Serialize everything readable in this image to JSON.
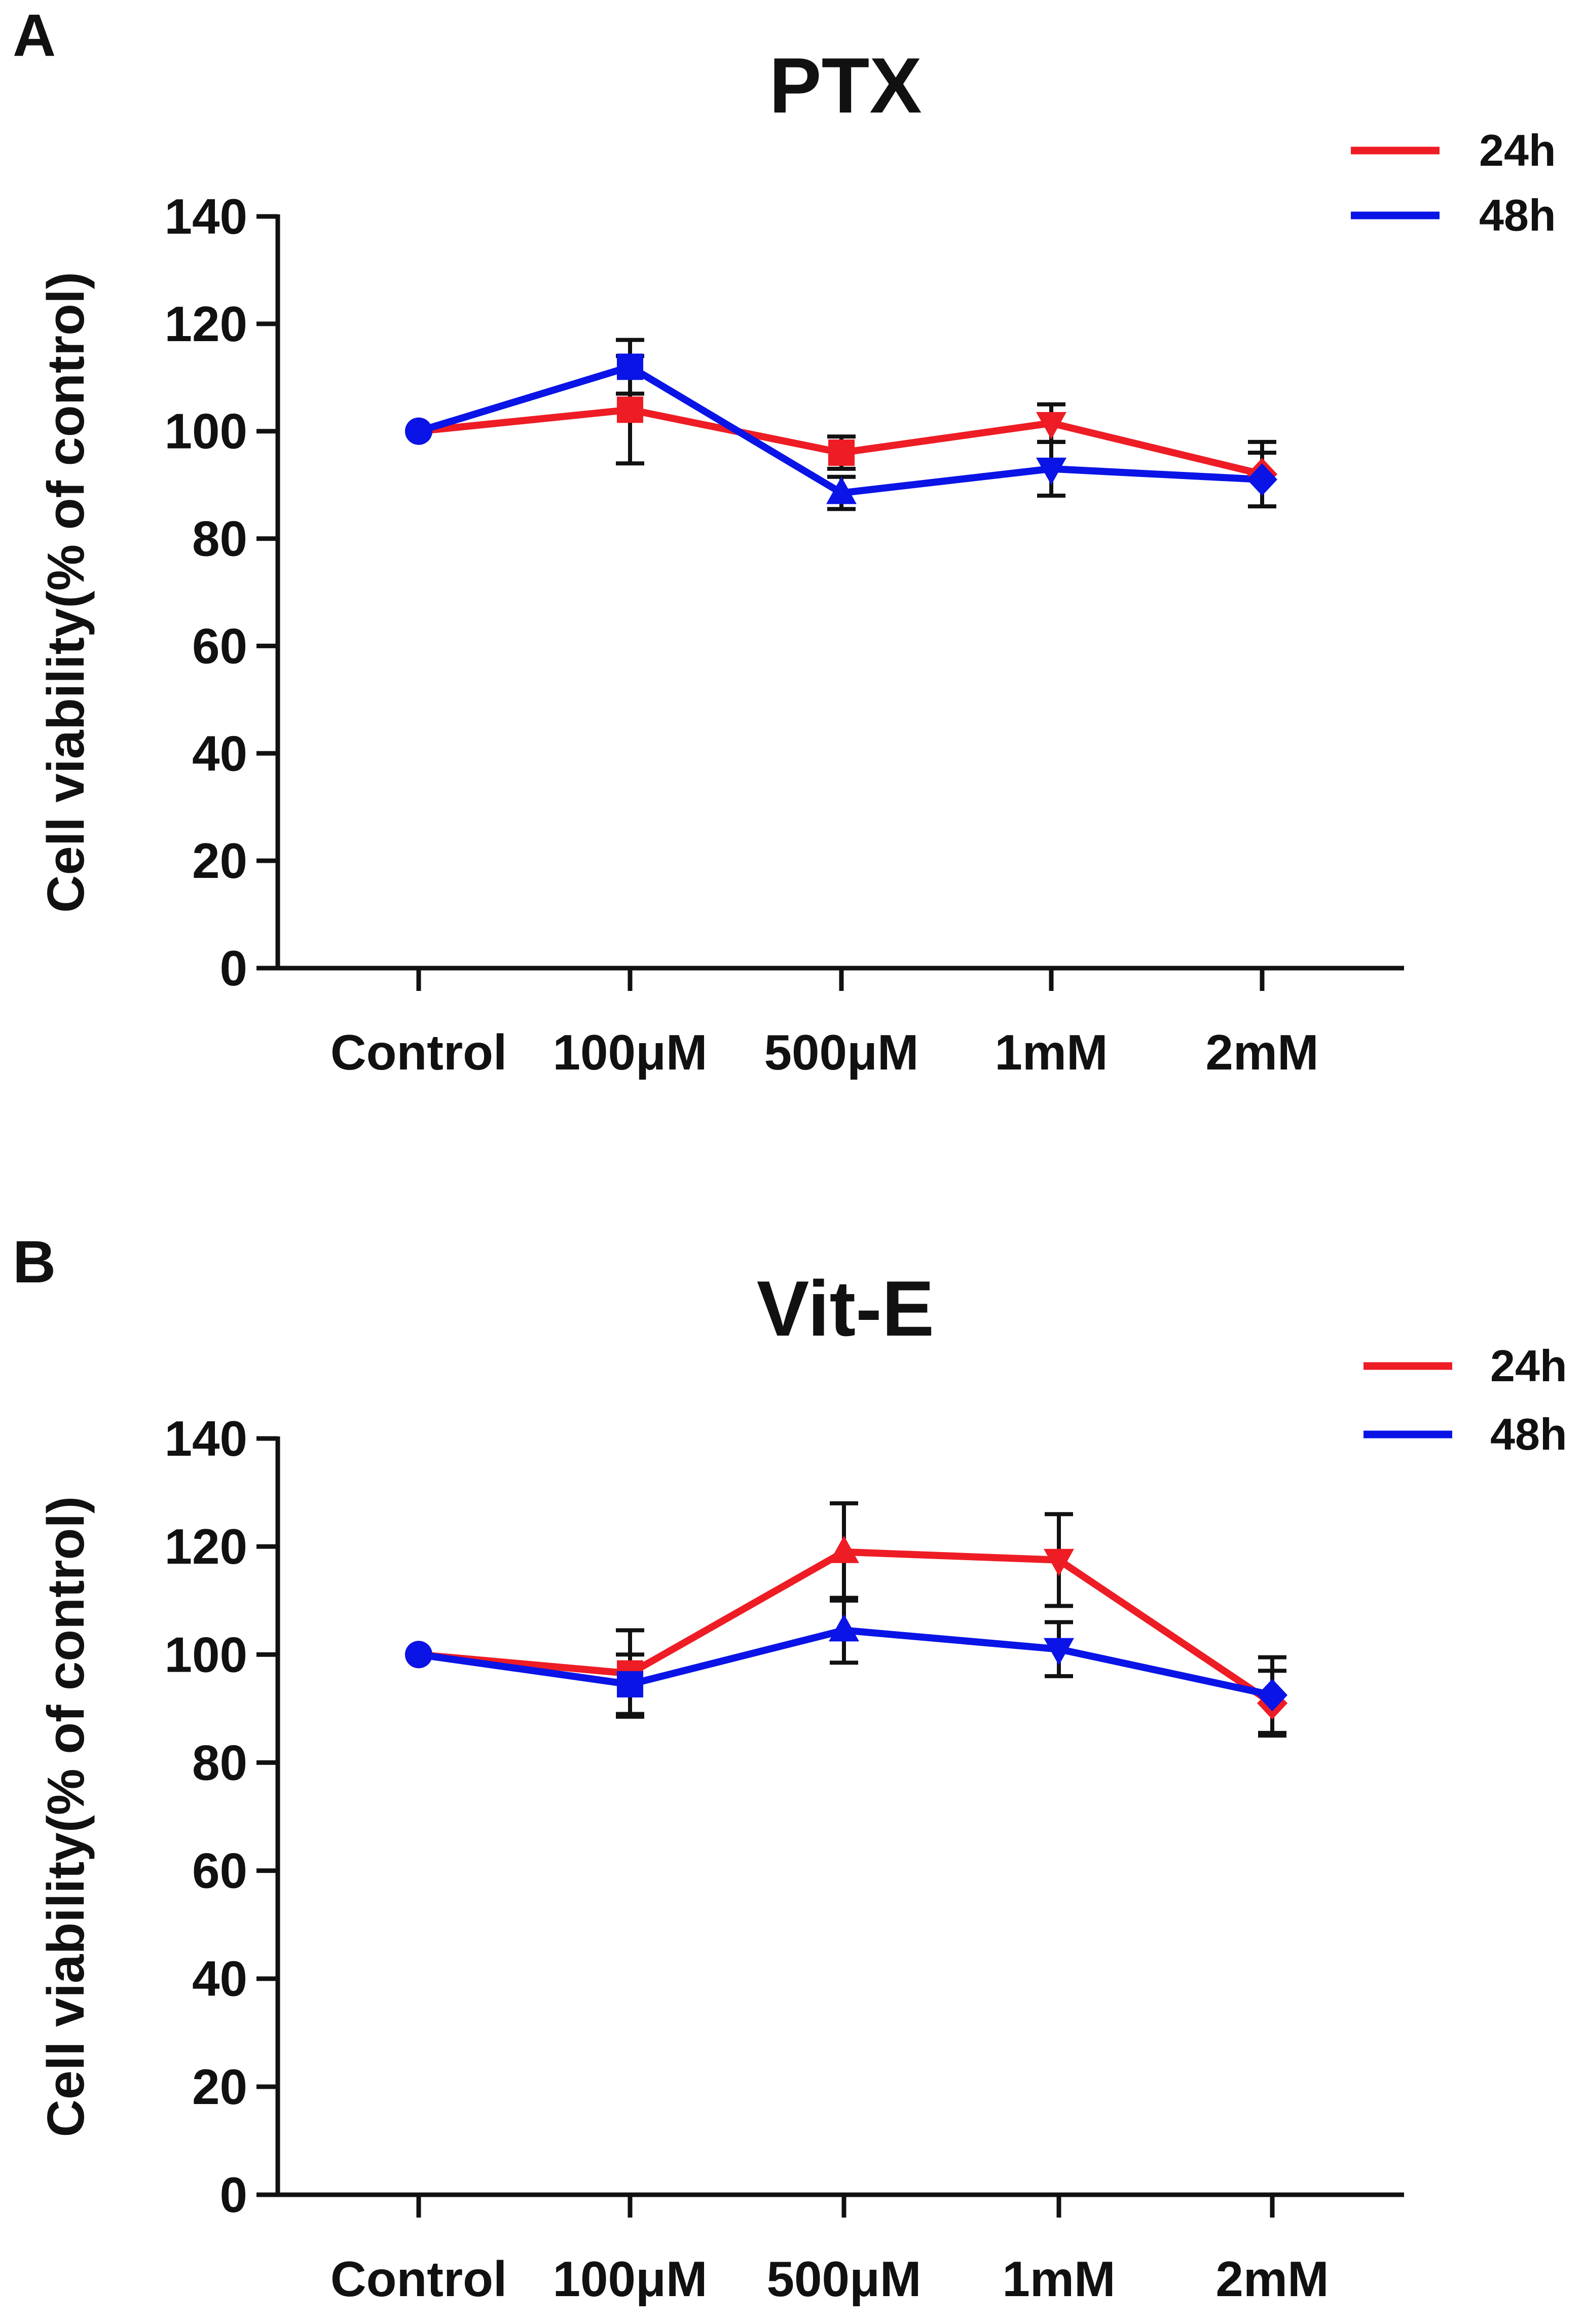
{
  "chart_data": [
    {
      "panel_label": "A",
      "type": "line",
      "title": "PTX",
      "xlabel": "",
      "ylabel": "Cell viability(% of control)",
      "categories": [
        "Control",
        "100μM",
        "500μM",
        "1mM",
        "2mM"
      ],
      "ylim": [
        0,
        140
      ],
      "yticks": [
        "0",
        "20",
        "40",
        "60",
        "80",
        "100",
        "120",
        "140"
      ],
      "legend_position": "top-right",
      "series": [
        {
          "name": "24h",
          "color": "#ee1c24",
          "markers": [
            "circle",
            "square",
            "square",
            "triangle-down",
            "diamond"
          ],
          "values": [
            100,
            104,
            96,
            101.5,
            92
          ],
          "errors": [
            0,
            10,
            3,
            3.5,
            6
          ]
        },
        {
          "name": "48h",
          "color": "#0a14e6",
          "markers": [
            "circle",
            "square",
            "triangle-up",
            "triangle-down",
            "diamond"
          ],
          "values": [
            100,
            112,
            88.5,
            93,
            91
          ],
          "errors": [
            0,
            5,
            3,
            5,
            5
          ]
        }
      ]
    },
    {
      "panel_label": "B",
      "type": "line",
      "title": "Vit-E",
      "xlabel": "",
      "ylabel": "Cell viability(% of control)",
      "categories": [
        "Control",
        "100μM",
        "500μM",
        "1mM",
        "2mM"
      ],
      "ylim": [
        0,
        140
      ],
      "yticks": [
        "0",
        "20",
        "40",
        "60",
        "80",
        "100",
        "120",
        "140"
      ],
      "legend_position": "top-right",
      "series": [
        {
          "name": "24h",
          "color": "#ee1c24",
          "markers": [
            "circle",
            "square",
            "triangle-up",
            "triangle-down",
            "diamond"
          ],
          "values": [
            100,
            96.5,
            119,
            117.5,
            91
          ],
          "errors": [
            0,
            8,
            9,
            8.5,
            6
          ]
        },
        {
          "name": "48h",
          "color": "#0a14e6",
          "markers": [
            "circle",
            "square",
            "triangle-up",
            "triangle-down",
            "diamond"
          ],
          "values": [
            100,
            94.5,
            104.5,
            101,
            92.5
          ],
          "errors": [
            0,
            5.5,
            6,
            5,
            7
          ]
        }
      ]
    }
  ]
}
